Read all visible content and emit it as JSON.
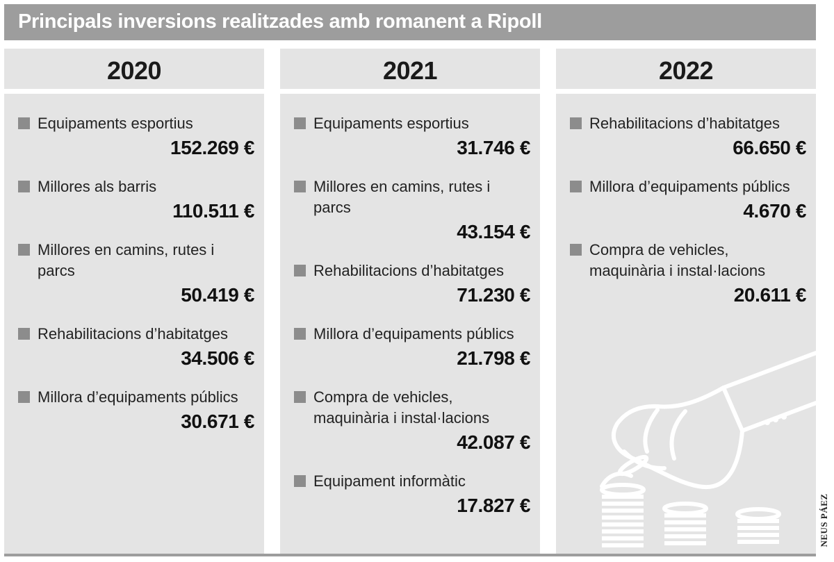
{
  "header": {
    "title": "Principals inversions realitzades amb romanent a Ripoll"
  },
  "columns": [
    {
      "year": "2020",
      "items": [
        {
          "label": "Equipaments esportius",
          "value": "152.269 €"
        },
        {
          "label": "Millores als barris",
          "value": "110.511 €"
        },
        {
          "label": "Millores en camins, rutes i parcs",
          "value": "50.419 €"
        },
        {
          "label": "Rehabilitacions d’habitatges",
          "value": "34.506 €"
        },
        {
          "label": "Millora d’equipaments públics",
          "value": "30.671 €"
        }
      ]
    },
    {
      "year": "2021",
      "items": [
        {
          "label": "Equipaments esportius",
          "value": "31.746 €"
        },
        {
          "label": "Millores en camins, rutes i parcs",
          "value": "43.154 €"
        },
        {
          "label": "Rehabilitacions d’habitatges",
          "value": "71.230 €"
        },
        {
          "label": "Millora d’equipaments públics",
          "value": "21.798 €"
        },
        {
          "label": "Compra de vehicles, maquinària i instal·lacions",
          "value": "42.087 €"
        },
        {
          "label": "Equipament informàtic",
          "value": "17.827 €"
        }
      ]
    },
    {
      "year": "2022",
      "items": [
        {
          "label": "Rehabilitacions d’habitatges",
          "value": "66.650 €"
        },
        {
          "label": "Millora d’equipaments públics",
          "value": "4.670 €"
        },
        {
          "label": "Compra de vehicles, maquinària i instal·lacions",
          "value": "20.611 €"
        }
      ]
    }
  ],
  "credit": "NEUS PÁEZ",
  "illustration": "hand-coins-icon",
  "colors": {
    "title_bg": "#9d9d9d",
    "panel_bg": "#e4e4e4",
    "bullet": "#8c8c8c"
  }
}
